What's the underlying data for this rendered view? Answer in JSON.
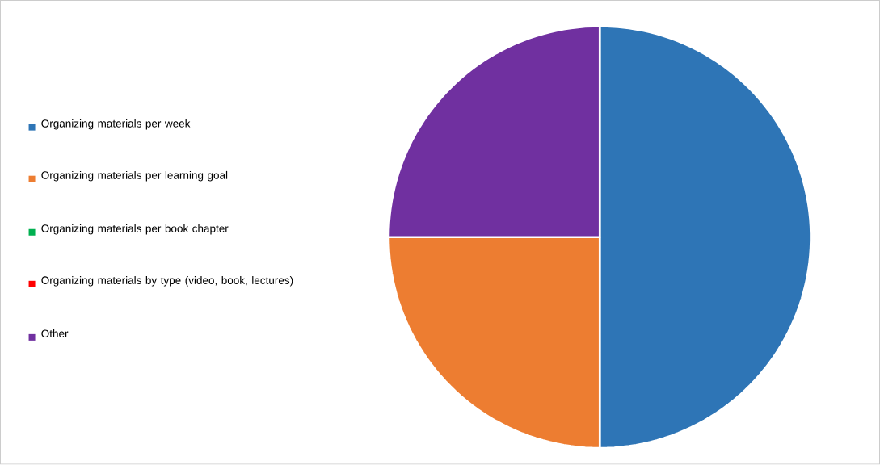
{
  "chart_data": {
    "type": "pie",
    "categories": [
      "Organizing materials per week",
      "Organizing materials per learning goal",
      "Organizing materials per book chapter",
      "Organizing materials by type (video, book, lectures)",
      "Other"
    ],
    "values": [
      50,
      25,
      0,
      0,
      25
    ],
    "colors": [
      "#2e75b6",
      "#ed7d31",
      "#00b050",
      "#ff0000",
      "#7030a0"
    ],
    "legend": "left"
  }
}
